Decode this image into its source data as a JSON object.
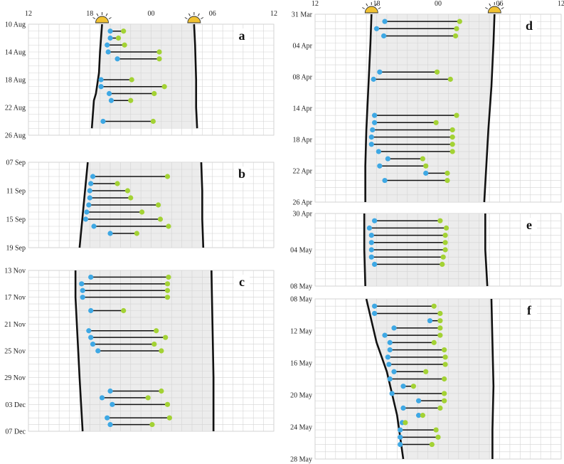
{
  "chart_data": [
    {
      "type": "range",
      "panel_label": "a",
      "x_ticks": [
        "12",
        "18",
        "00",
        "06",
        "12"
      ],
      "y_ticks": [
        "10 Aug",
        "14 Aug",
        "18 Aug",
        "22 Aug",
        "26 Aug"
      ],
      "rows": 16,
      "sunset": [
        [
          0,
          19.2
        ],
        [
          4,
          19.0
        ],
        [
          7,
          18.9
        ],
        [
          10,
          18.6
        ],
        [
          11,
          18.4
        ],
        [
          15,
          18.2
        ]
      ],
      "sunrise": [
        [
          0,
          4.2
        ],
        [
          3,
          4.3
        ],
        [
          8,
          4.4
        ],
        [
          12,
          4.4
        ],
        [
          15,
          4.5
        ]
      ],
      "events": [
        {
          "row": 1,
          "start": 20.0,
          "end": 21.3
        },
        {
          "row": 2,
          "start": 20.0,
          "end": 20.8
        },
        {
          "row": 3,
          "start": 19.7,
          "end": 21.4
        },
        {
          "row": 4,
          "start": 19.8,
          "end": 24.8
        },
        {
          "row": 5,
          "start": 20.7,
          "end": 24.8
        },
        {
          "row": 8,
          "start": 19.1,
          "end": 22.1
        },
        {
          "row": 9,
          "start": 19.1,
          "end": 25.3
        },
        {
          "row": 10,
          "start": 19.9,
          "end": 24.3
        },
        {
          "row": 11,
          "start": 20.1,
          "end": 22.0
        },
        {
          "row": 14,
          "start": 19.3,
          "end": 24.2
        }
      ]
    },
    {
      "type": "range",
      "panel_label": "b",
      "x_ticks": [],
      "y_ticks": [
        "07 Sep",
        "11 Sep",
        "15 Sep",
        "19 Sep"
      ],
      "rows": 12,
      "sunset": [
        [
          0,
          17.8
        ],
        [
          3,
          17.6
        ],
        [
          6,
          17.4
        ],
        [
          9,
          17.2
        ],
        [
          12,
          17.0
        ]
      ],
      "sunrise": [
        [
          0,
          4.9
        ],
        [
          4,
          5.0
        ],
        [
          8,
          5.0
        ],
        [
          12,
          5.1
        ]
      ],
      "events": [
        {
          "row": 2,
          "start": 18.3,
          "end": 25.6
        },
        {
          "row": 3,
          "start": 18.1,
          "end": 20.7
        },
        {
          "row": 4,
          "start": 18.0,
          "end": 21.7
        },
        {
          "row": 5,
          "start": 18.0,
          "end": 22.0
        },
        {
          "row": 6,
          "start": 17.9,
          "end": 24.7
        },
        {
          "row": 7,
          "start": 17.7,
          "end": 23.1
        },
        {
          "row": 8,
          "start": 17.6,
          "end": 24.9
        },
        {
          "row": 9,
          "start": 18.4,
          "end": 25.7
        },
        {
          "row": 10,
          "start": 20.0,
          "end": 22.6
        }
      ]
    },
    {
      "type": "range",
      "panel_label": "c",
      "x_ticks": [],
      "y_ticks": [
        "13 Nov",
        "17 Nov",
        "21 Nov",
        "25 Nov",
        "29 Nov",
        "03 Dec",
        "07 Dec"
      ],
      "rows": 24,
      "sunset": [
        [
          0,
          16.6
        ],
        [
          4,
          16.6
        ],
        [
          10,
          16.8
        ],
        [
          16,
          17.0
        ],
        [
          24,
          17.3
        ]
      ],
      "sunrise": [
        [
          0,
          5.9
        ],
        [
          8,
          6.0
        ],
        [
          16,
          6.1
        ],
        [
          24,
          6.1
        ]
      ],
      "events": [
        {
          "row": 1,
          "start": 18.1,
          "end": 25.7
        },
        {
          "row": 2,
          "start": 17.2,
          "end": 25.6
        },
        {
          "row": 3,
          "start": 17.3,
          "end": 25.6
        },
        {
          "row": 4,
          "start": 17.3,
          "end": 25.6
        },
        {
          "row": 6,
          "start": 18.1,
          "end": 21.3
        },
        {
          "row": 9,
          "start": 17.9,
          "end": 24.5
        },
        {
          "row": 10,
          "start": 18.1,
          "end": 25.4
        },
        {
          "row": 11,
          "start": 18.3,
          "end": 24.3
        },
        {
          "row": 12,
          "start": 18.8,
          "end": 25.0
        },
        {
          "row": 18,
          "start": 20.0,
          "end": 25.0
        },
        {
          "row": 19,
          "start": 19.2,
          "end": 23.7
        },
        {
          "row": 20,
          "start": 20.2,
          "end": 25.6
        },
        {
          "row": 22,
          "start": 19.7,
          "end": 25.8
        },
        {
          "row": 23,
          "start": 20.0,
          "end": 24.1
        }
      ]
    },
    {
      "type": "range",
      "panel_label": "d",
      "x_ticks": [
        "12",
        "18",
        "00",
        "06",
        "12"
      ],
      "y_ticks": [
        "31 Mar",
        "04 Apr",
        "08 Apr",
        "14 Apr",
        "18 Apr",
        "22 Apr",
        "26 Apr"
      ],
      "rows": 26,
      "sunset": [
        [
          0,
          17.5
        ],
        [
          4,
          17.4
        ],
        [
          10,
          17.2
        ],
        [
          16,
          17.0
        ],
        [
          21,
          16.9
        ],
        [
          26,
          16.9
        ]
      ],
      "sunrise": [
        [
          0,
          5.5
        ],
        [
          4,
          5.4
        ],
        [
          10,
          5.2
        ],
        [
          16,
          4.9
        ],
        [
          21,
          4.7
        ],
        [
          26,
          4.5
        ]
      ],
      "events": [
        {
          "row": 1,
          "start": 18.8,
          "end": 26.1
        },
        {
          "row": 2,
          "start": 18.0,
          "end": 25.8
        },
        {
          "row": 3,
          "start": 18.7,
          "end": 25.7
        },
        {
          "row": 8,
          "start": 18.3,
          "end": 23.9
        },
        {
          "row": 9,
          "start": 17.7,
          "end": 25.2
        },
        {
          "row": 14,
          "start": 17.8,
          "end": 25.8
        },
        {
          "row": 15,
          "start": 17.8,
          "end": 23.8
        },
        {
          "row": 16,
          "start": 17.6,
          "end": 25.4
        },
        {
          "row": 17,
          "start": 17.5,
          "end": 25.4
        },
        {
          "row": 18,
          "start": 17.5,
          "end": 25.4
        },
        {
          "row": 19,
          "start": 18.2,
          "end": 25.4
        },
        {
          "row": 20,
          "start": 19.1,
          "end": 22.5
        },
        {
          "row": 21,
          "start": 18.3,
          "end": 22.8
        },
        {
          "row": 22,
          "start": 22.8,
          "end": 24.9
        },
        {
          "row": 23,
          "start": 18.8,
          "end": 24.9
        }
      ]
    },
    {
      "type": "range",
      "panel_label": "e",
      "x_ticks": [],
      "y_ticks": [
        "30 Apr",
        "04 May",
        "08 May"
      ],
      "rows": 10,
      "sunset": [
        [
          0,
          16.8
        ],
        [
          5,
          16.8
        ],
        [
          10,
          16.9
        ]
      ],
      "sunrise": [
        [
          0,
          4.6
        ],
        [
          5,
          4.6
        ],
        [
          10,
          4.8
        ]
      ],
      "events": [
        {
          "row": 1,
          "start": 17.8,
          "end": 24.2
        },
        {
          "row": 2,
          "start": 17.3,
          "end": 24.8
        },
        {
          "row": 3,
          "start": 17.5,
          "end": 24.7
        },
        {
          "row": 4,
          "start": 17.5,
          "end": 24.7
        },
        {
          "row": 5,
          "start": 17.5,
          "end": 24.7
        },
        {
          "row": 6,
          "start": 17.5,
          "end": 24.5
        },
        {
          "row": 7,
          "start": 17.8,
          "end": 24.4
        }
      ]
    },
    {
      "type": "range",
      "panel_label": "f",
      "x_ticks": [],
      "y_ticks": [
        "08 May",
        "12 May",
        "16 May",
        "20 May",
        "24 May",
        "28 May"
      ],
      "rows": 22,
      "sunset": [
        [
          0,
          17.0
        ],
        [
          6,
          18.0
        ],
        [
          10,
          19.0
        ],
        [
          16,
          20.0
        ],
        [
          22,
          20.6
        ]
      ],
      "sunrise": [
        [
          0,
          5.2
        ],
        [
          6,
          5.3
        ],
        [
          12,
          5.4
        ],
        [
          18,
          5.3
        ],
        [
          22,
          5.3
        ]
      ],
      "events": [
        {
          "row": 1,
          "start": 17.8,
          "end": 23.6
        },
        {
          "row": 2,
          "start": 17.8,
          "end": 24.2
        },
        {
          "row": 3,
          "start": 23.2,
          "end": 24.2
        },
        {
          "row": 4,
          "start": 19.7,
          "end": 24.2
        },
        {
          "row": 5,
          "start": 18.8,
          "end": 24.2
        },
        {
          "row": 6,
          "start": 19.3,
          "end": 23.6
        },
        {
          "row": 7,
          "start": 19.3,
          "end": 24.6
        },
        {
          "row": 8,
          "start": 19.1,
          "end": 24.7
        },
        {
          "row": 9,
          "start": 19.2,
          "end": 24.7
        },
        {
          "row": 10,
          "start": 19.7,
          "end": 22.8
        },
        {
          "row": 11,
          "start": 19.3,
          "end": 24.6
        },
        {
          "row": 12,
          "start": 20.6,
          "end": 21.6
        },
        {
          "row": 13,
          "start": 19.5,
          "end": 24.6
        },
        {
          "row": 14,
          "start": 22.1,
          "end": 24.6
        },
        {
          "row": 15,
          "start": 20.6,
          "end": 24.2
        },
        {
          "row": 16,
          "start": 22.1,
          "end": 22.5
        },
        {
          "row": 17,
          "start": 20.5,
          "end": 20.8
        },
        {
          "row": 18,
          "start": 20.3,
          "end": 23.8
        },
        {
          "row": 19,
          "start": 20.3,
          "end": 24.0
        },
        {
          "row": 20,
          "start": 20.3,
          "end": 23.4
        }
      ]
    }
  ]
}
